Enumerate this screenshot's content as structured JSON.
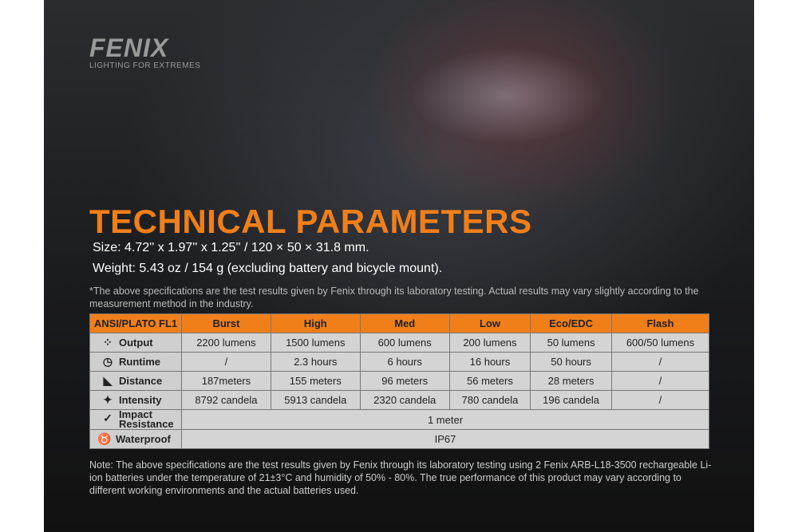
{
  "brand": {
    "name": "FENIX",
    "tagline": "LIGHTING FOR EXTREMES"
  },
  "title": "TECHNICAL PARAMETERS",
  "size": "Size: 4.72'' x 1.97'' x 1.25'' / 120 × 50 × 31.8 mm.",
  "weight": "Weight: 5.43 oz / 154 g (excluding battery and bicycle mount).",
  "disclaimer": "*The above specifications are the test results given by Fenix through its laboratory testing. Actual results may vary slightly according to the measurement method in the industry.",
  "table": {
    "headers": [
      "ANSI/PLATO  FL1",
      "Burst",
      "High",
      "Med",
      "Low",
      "Eco/EDC",
      "Flash"
    ],
    "rows": [
      {
        "label": "Output",
        "icon": "light-rays-icon",
        "values": [
          "2200 lumens",
          "1500 lumens",
          "600 lumens",
          "200 lumens",
          "50 lumens",
          "600/50 lumens"
        ]
      },
      {
        "label": "Runtime",
        "icon": "clock-icon",
        "values": [
          "/",
          "2.3 hours",
          "6 hours",
          "16 hours",
          "50 hours",
          "/"
        ]
      },
      {
        "label": "Distance",
        "icon": "beam-distance-icon",
        "values": [
          "187meters",
          "155 meters",
          "96 meters",
          "56 meters",
          "28 meters",
          "/"
        ]
      },
      {
        "label": "Intensity",
        "icon": "intensity-star-icon",
        "values": [
          "8792 candela",
          "5913 candela",
          "2320 candela",
          "780 candela",
          "196 candela",
          "/"
        ]
      }
    ],
    "impact": {
      "label1": "Impact",
      "label2": "Resistance",
      "icon": "impact-check-icon",
      "value": "1 meter"
    },
    "waterproof": {
      "label": "Waterproof",
      "icon": "water-splash-icon",
      "value": "IP67"
    }
  },
  "footnote": "Note: The above specifications are the test results given by Fenix through its laboratory testing using 2 Fenix ARB-L18-3500 rechargeable Li-ion batteries under the temperature of 21±3°C and humidity of 50% - 80%. The true performance of this product may vary according to different working environments and the actual batteries used."
}
